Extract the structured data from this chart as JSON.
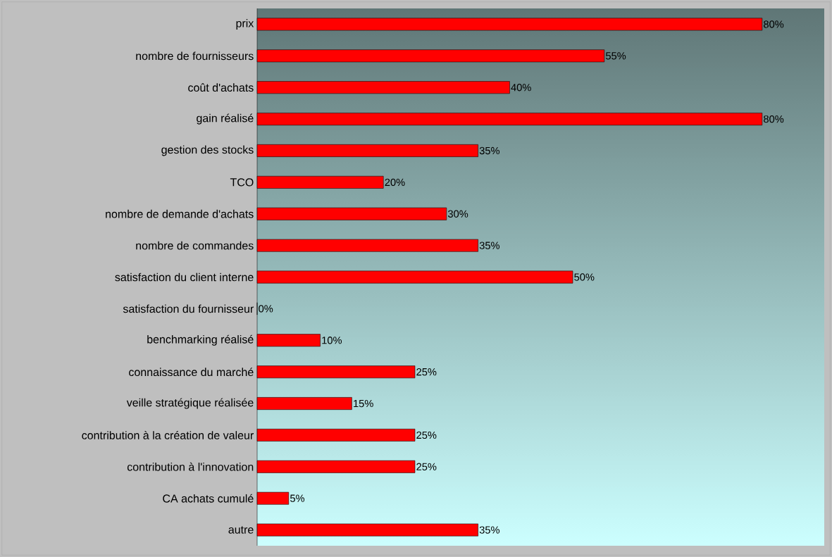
{
  "chart_data": {
    "type": "bar",
    "orientation": "horizontal",
    "color": "#ff0000",
    "categories": [
      "prix",
      "nombre de fournisseurs",
      "coût d'achats",
      "gain réalisé",
      "gestion des stocks",
      "TCO",
      "nombre de demande d'achats",
      "nombre de commandes",
      "satisfaction du client interne",
      "satisfaction du fournisseur",
      "benchmarking réalisé",
      "connaissance du marché",
      "veille stratégique réalisée",
      "contribution à la création de valeur",
      "contribution à l'innovation",
      "CA achats cumulé",
      "autre"
    ],
    "values": [
      80,
      55,
      40,
      80,
      35,
      20,
      30,
      35,
      50,
      0,
      10,
      25,
      15,
      25,
      25,
      5,
      35
    ],
    "value_labels": [
      "80%",
      "55%",
      "40%",
      "80%",
      "35%",
      "20%",
      "30%",
      "35%",
      "50%",
      "0%",
      "10%",
      "25%",
      "15%",
      "25%",
      "25%",
      "5%",
      "35%"
    ]
  }
}
